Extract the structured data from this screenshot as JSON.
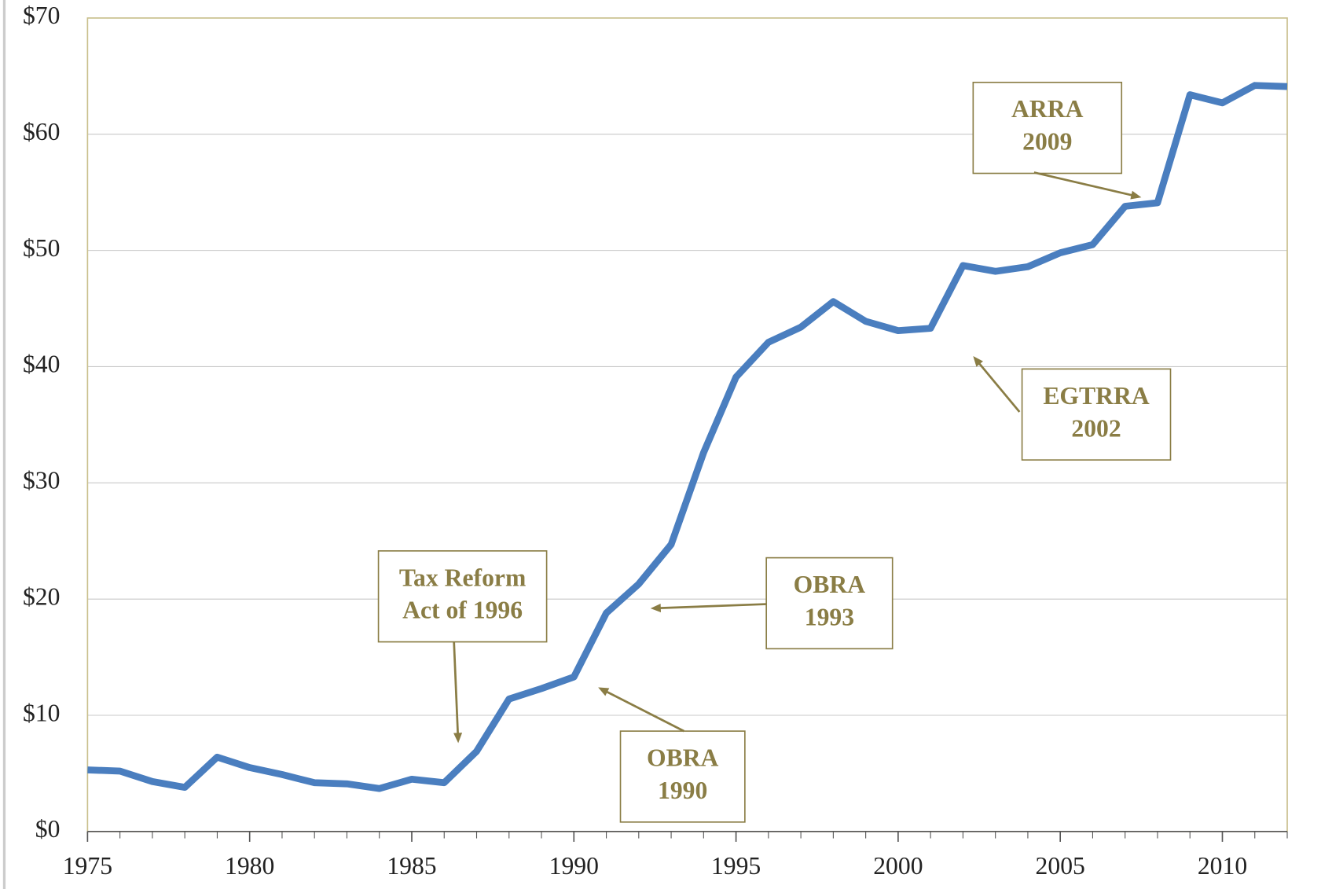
{
  "chart_data": {
    "type": "line",
    "x": [
      1975,
      1976,
      1977,
      1978,
      1979,
      1980,
      1981,
      1982,
      1983,
      1984,
      1985,
      1986,
      1987,
      1988,
      1989,
      1990,
      1991,
      1992,
      1993,
      1994,
      1995,
      1996,
      1997,
      1998,
      1999,
      2000,
      2001,
      2002,
      2003,
      2004,
      2005,
      2006,
      2007,
      2008,
      2009,
      2010,
      2011,
      2012
    ],
    "values": [
      5.3,
      5.2,
      4.3,
      3.8,
      6.4,
      5.5,
      4.9,
      4.2,
      4.1,
      3.7,
      4.5,
      4.2,
      6.9,
      11.4,
      12.3,
      13.3,
      18.8,
      21.3,
      24.7,
      32.6,
      39.1,
      42.1,
      43.4,
      45.6,
      43.9,
      43.1,
      43.3,
      48.7,
      48.2,
      48.6,
      49.8,
      50.5,
      53.8,
      54.1,
      63.4,
      62.7,
      64.2,
      64.1
    ],
    "color": "#4a7ebf",
    "xlim": [
      1975,
      2012
    ],
    "xticks": [
      1975,
      1980,
      1985,
      1990,
      1995,
      2000,
      2005,
      2010
    ],
    "ylim": [
      0,
      70
    ],
    "yticks": [
      {
        "value": 0,
        "label": "$0"
      },
      {
        "value": 10,
        "label": "$10"
      },
      {
        "value": 20,
        "label": "$20"
      },
      {
        "value": 30,
        "label": "$30"
      },
      {
        "value": 40,
        "label": "$40"
      },
      {
        "value": 50,
        "label": "$50"
      },
      {
        "value": 60,
        "label": "$60"
      },
      {
        "value": 70,
        "label": "$70"
      }
    ],
    "grid": true,
    "annotations": [
      {
        "lines": [
          "ARRA",
          "2009"
        ]
      },
      {
        "lines": [
          "EGTRRA",
          "2002"
        ]
      },
      {
        "lines": [
          "OBRA",
          "1993"
        ]
      },
      {
        "lines": [
          "OBRA",
          "1990"
        ]
      },
      {
        "lines": [
          "Tax Reform",
          "Act of 1996"
        ]
      }
    ]
  }
}
